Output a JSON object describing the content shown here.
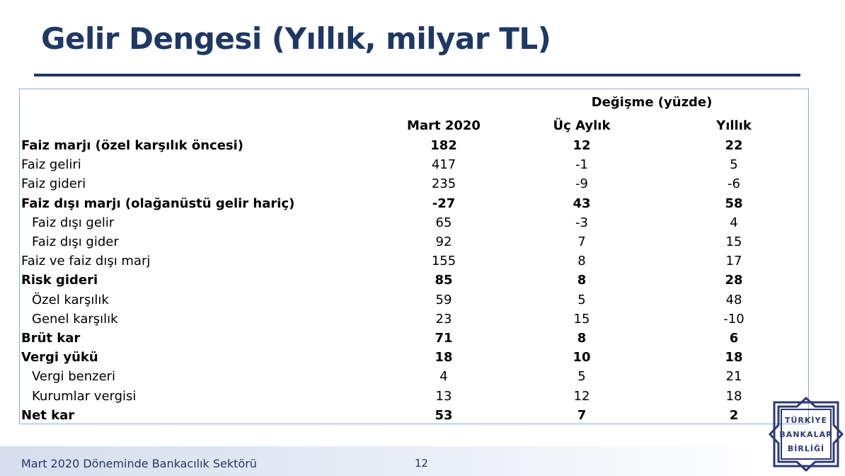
{
  "slide": {
    "title": "Gelir Dengesi (Yıllık, milyar TL)",
    "footer": "Mart 2020 Döneminde Bankacılık Sektörü",
    "page_number": "12"
  },
  "table": {
    "group_header": "Değişme (yüzde)",
    "columns": [
      "Mart 2020",
      "Üç Aylık",
      "Yıllık"
    ],
    "rows": [
      {
        "label": "Faiz marjı (özel karşılık öncesi)",
        "values": [
          "182",
          "12",
          "22"
        ],
        "bold": true,
        "indent": false
      },
      {
        "label": "Faiz geliri",
        "values": [
          "417",
          "-1",
          "5"
        ],
        "bold": false,
        "indent": false
      },
      {
        "label": "Faiz gideri",
        "values": [
          "235",
          "-9",
          "-6"
        ],
        "bold": false,
        "indent": false
      },
      {
        "label": "Faiz dışı marjı (olağanüstü gelir hariç)",
        "values": [
          "-27",
          "43",
          "58"
        ],
        "bold": true,
        "indent": false
      },
      {
        "label": "Faiz dışı gelir",
        "values": [
          "65",
          "-3",
          "4"
        ],
        "bold": false,
        "indent": true
      },
      {
        "label": "Faiz dışı gider",
        "values": [
          "92",
          "7",
          "15"
        ],
        "bold": false,
        "indent": true
      },
      {
        "label": "Faiz ve faiz dışı marj",
        "values": [
          "155",
          "8",
          "17"
        ],
        "bold": false,
        "indent": false
      },
      {
        "label": "Risk gideri",
        "values": [
          "85",
          "8",
          "28"
        ],
        "bold": true,
        "indent": false
      },
      {
        "label": "Özel karşılık",
        "values": [
          "59",
          "5",
          "48"
        ],
        "bold": false,
        "indent": true
      },
      {
        "label": "Genel karşılık",
        "values": [
          "23",
          "15",
          "-10"
        ],
        "bold": false,
        "indent": true
      },
      {
        "label": "Brüt kar",
        "values": [
          "71",
          "8",
          "6"
        ],
        "bold": true,
        "indent": false
      },
      {
        "label": "Vergi yükü",
        "values": [
          "18",
          "10",
          "18"
        ],
        "bold": true,
        "indent": false
      },
      {
        "label": "Vergi benzeri",
        "values": [
          "4",
          "5",
          "21"
        ],
        "bold": false,
        "indent": true
      },
      {
        "label": "Kurumlar vergisi",
        "values": [
          "13",
          "12",
          "18"
        ],
        "bold": false,
        "indent": true
      },
      {
        "label": "Net kar",
        "values": [
          "53",
          "7",
          "2"
        ],
        "bold": true,
        "indent": false
      }
    ]
  },
  "logo": {
    "text_lines": [
      "TÜRKİYE",
      "BANKALAR",
      "BİRLİĞİ"
    ],
    "icon": "tbb-logo-icon"
  },
  "colors": {
    "title": "#1F3864",
    "table_border": "#8EA9DB",
    "logo": "#2E3A75"
  }
}
